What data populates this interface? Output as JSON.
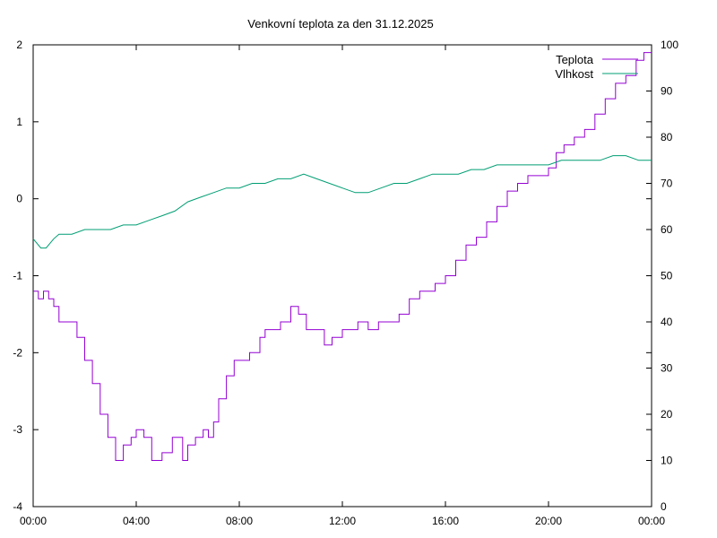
{
  "chart_data": {
    "type": "line",
    "title": "Venkovní teplota za den 31.12.2025",
    "xlabel": "",
    "ylabel": "",
    "y2label": "",
    "x_ticks": [
      "00:00",
      "04:00",
      "08:00",
      "12:00",
      "16:00",
      "20:00",
      "00:00"
    ],
    "xlim_hours": [
      0,
      24
    ],
    "ylim": [
      -4,
      2
    ],
    "y_ticks": [
      "-4",
      "-3",
      "-2",
      "-1",
      "0",
      "1",
      "2"
    ],
    "y2lim": [
      0,
      100
    ],
    "y2_ticks": [
      "0",
      "10",
      "20",
      "30",
      "40",
      "50",
      "60",
      "70",
      "80",
      "90",
      "100"
    ],
    "grid": false,
    "legend_position": "top-right",
    "colors": {
      "teplota": "#9400d3",
      "vlhkost": "#009e73"
    },
    "series": [
      {
        "name": "Teplota",
        "axis": "left",
        "x": [
          0,
          0.2,
          0.4,
          0.6,
          0.8,
          1.0,
          1.4,
          1.7,
          2.0,
          2.3,
          2.6,
          2.9,
          3.2,
          3.5,
          3.8,
          4.0,
          4.3,
          4.6,
          5.0,
          5.4,
          5.8,
          6.0,
          6.3,
          6.6,
          6.8,
          7.0,
          7.2,
          7.5,
          7.8,
          8.0,
          8.4,
          8.8,
          9.0,
          9.3,
          9.6,
          10.0,
          10.3,
          10.6,
          11.0,
          11.3,
          11.6,
          12.0,
          12.3,
          12.6,
          13.0,
          13.4,
          13.8,
          14.2,
          14.6,
          15.0,
          15.3,
          15.6,
          16.0,
          16.4,
          16.8,
          17.2,
          17.6,
          18.0,
          18.4,
          18.8,
          19.2,
          19.6,
          20.0,
          20.3,
          20.6,
          21.0,
          21.4,
          21.8,
          22.2,
          22.6,
          23.0,
          23.4,
          23.7,
          24.0
        ],
        "values": [
          -1.2,
          -1.3,
          -1.2,
          -1.3,
          -1.4,
          -1.6,
          -1.6,
          -1.8,
          -2.1,
          -2.4,
          -2.8,
          -3.1,
          -3.4,
          -3.2,
          -3.1,
          -3.0,
          -3.1,
          -3.4,
          -3.3,
          -3.1,
          -3.4,
          -3.2,
          -3.1,
          -3.0,
          -3.1,
          -2.9,
          -2.6,
          -2.3,
          -2.1,
          -2.1,
          -2.0,
          -1.8,
          -1.7,
          -1.7,
          -1.6,
          -1.4,
          -1.5,
          -1.7,
          -1.7,
          -1.9,
          -1.8,
          -1.7,
          -1.7,
          -1.6,
          -1.7,
          -1.6,
          -1.6,
          -1.5,
          -1.3,
          -1.2,
          -1.2,
          -1.1,
          -1.0,
          -0.8,
          -0.6,
          -0.5,
          -0.3,
          -0.1,
          0.1,
          0.2,
          0.3,
          0.3,
          0.4,
          0.6,
          0.7,
          0.8,
          0.9,
          1.1,
          1.3,
          1.5,
          1.6,
          1.8,
          1.9,
          1.9
        ]
      },
      {
        "name": "Vlhkost",
        "axis": "right",
        "x": [
          0,
          0.3,
          0.5,
          0.8,
          1.0,
          1.5,
          2.0,
          2.5,
          3.0,
          3.5,
          4.0,
          4.5,
          5.0,
          5.5,
          6.0,
          6.5,
          7.0,
          7.5,
          8.0,
          8.5,
          9.0,
          9.5,
          10.0,
          10.5,
          11.0,
          11.5,
          12.0,
          12.5,
          13.0,
          13.5,
          14.0,
          14.5,
          15.0,
          15.5,
          16.0,
          16.5,
          17.0,
          17.5,
          18.0,
          18.5,
          19.0,
          19.5,
          20.0,
          20.5,
          21.0,
          21.5,
          22.0,
          22.5,
          23.0,
          23.5,
          24.0
        ],
        "values": [
          58,
          56,
          56,
          58,
          59,
          59,
          60,
          60,
          60,
          61,
          61,
          62,
          63,
          64,
          66,
          67,
          68,
          69,
          69,
          70,
          70,
          71,
          71,
          72,
          71,
          70,
          69,
          68,
          68,
          69,
          70,
          70,
          71,
          72,
          72,
          72,
          73,
          73,
          74,
          74,
          74,
          74,
          74,
          75,
          75,
          75,
          75,
          76,
          76,
          75,
          75
        ]
      }
    ]
  }
}
